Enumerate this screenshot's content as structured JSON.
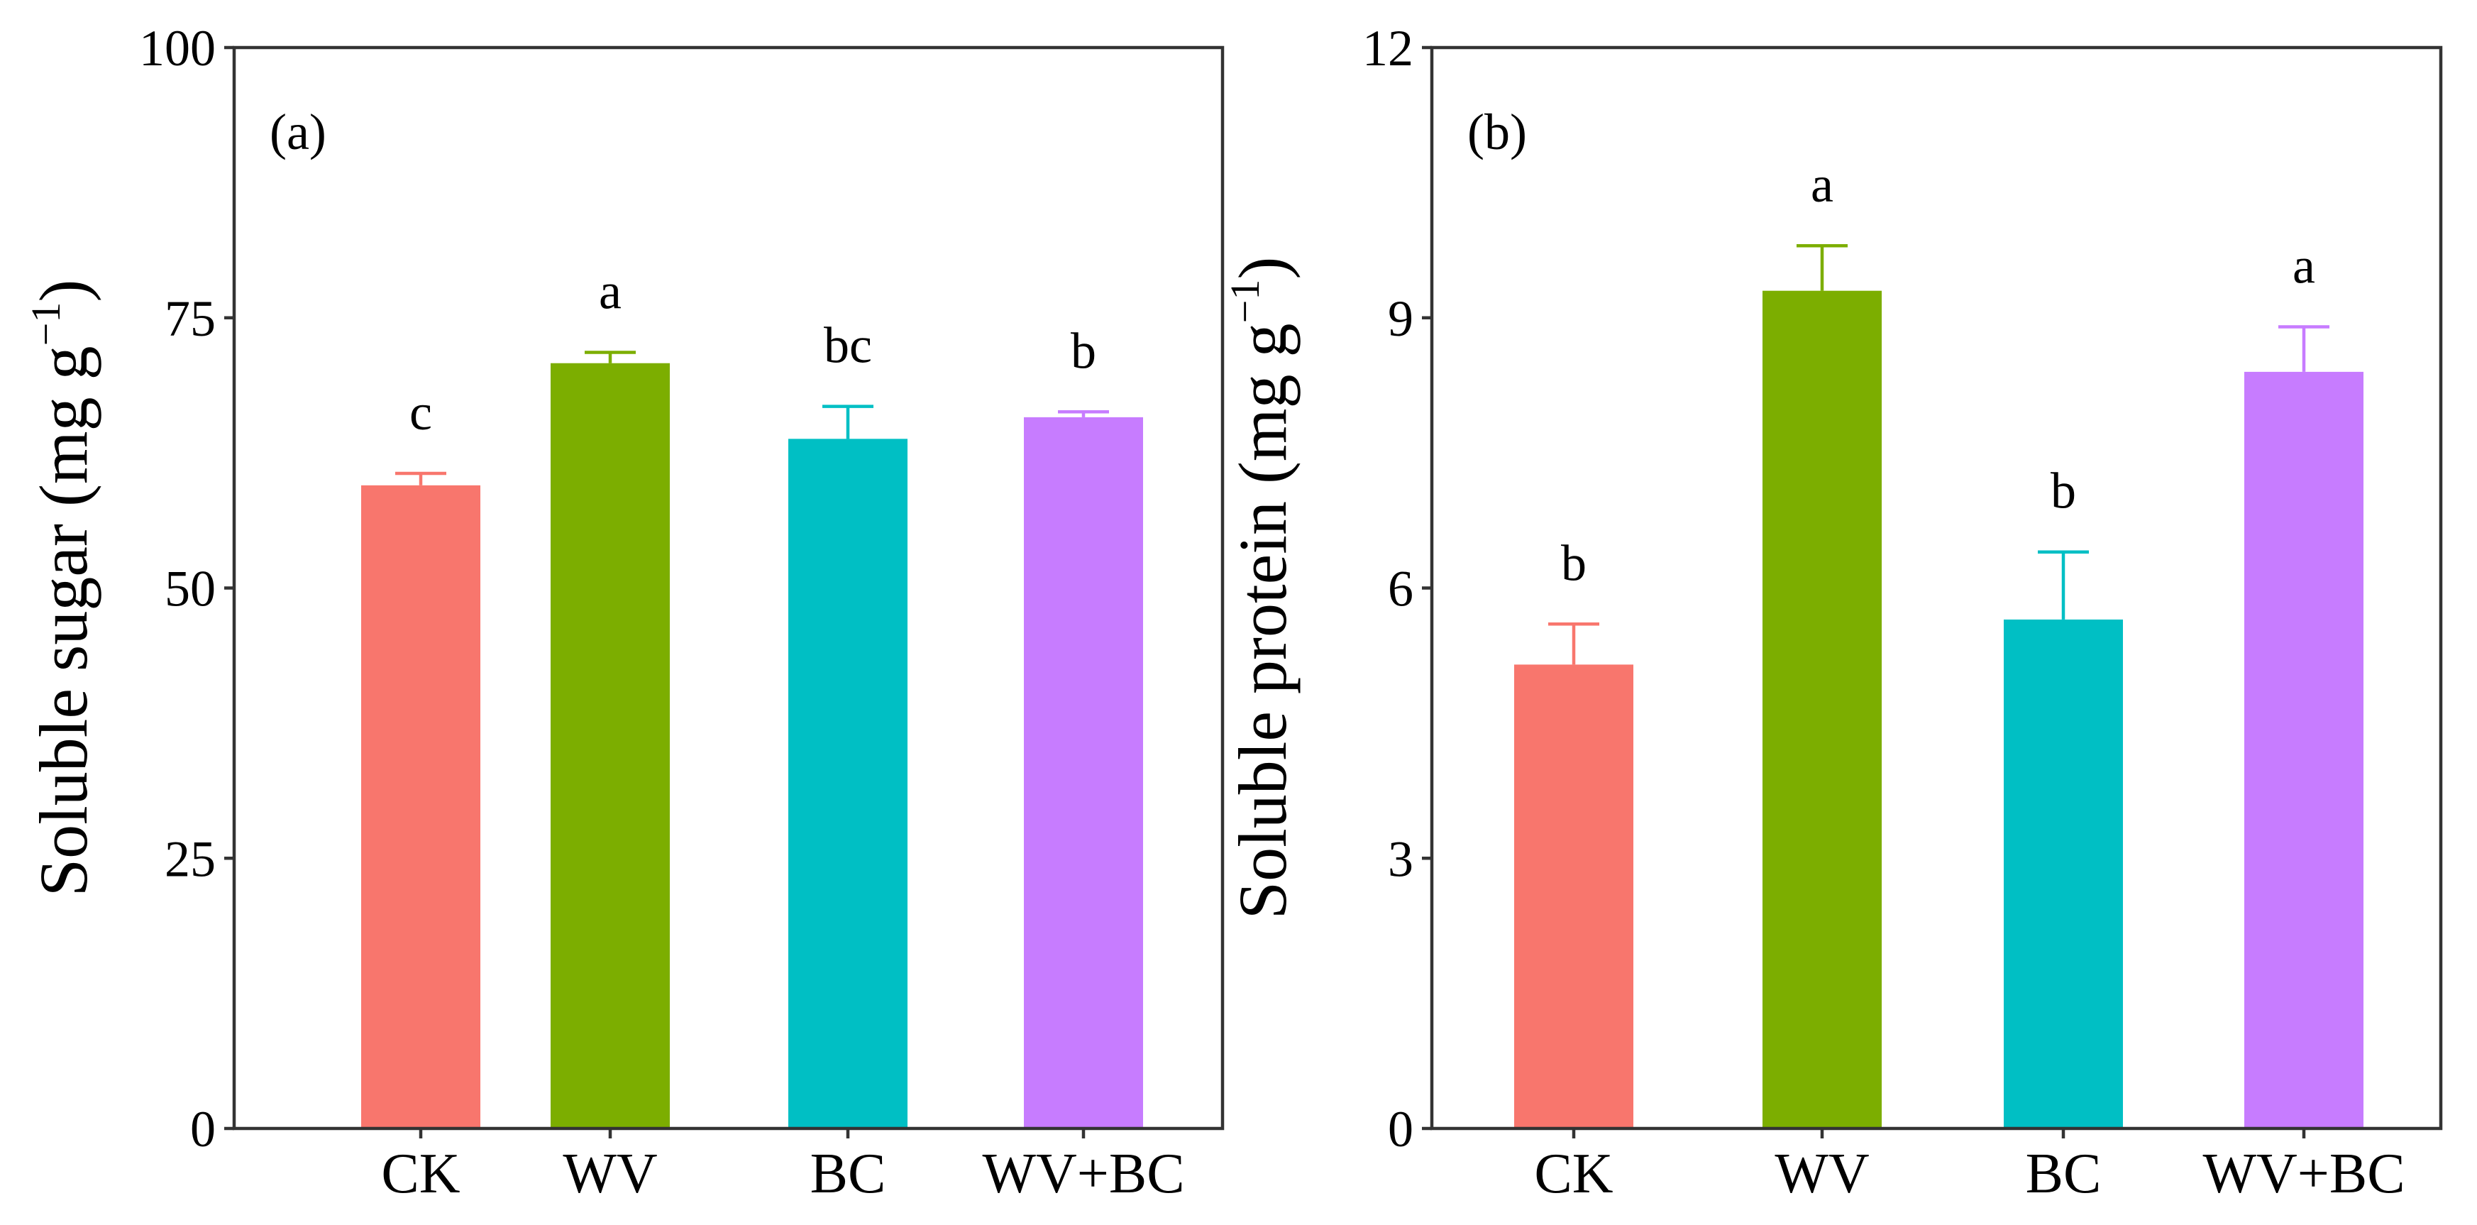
{
  "chart_data": [
    {
      "type": "bar",
      "panel_label": "(a)",
      "ylabel_main": "Soluble sugar (mg g",
      "ylabel_sup": "−1",
      "ylabel_close": ")",
      "xlabel": "",
      "ylim": [
        0,
        100
      ],
      "yticks": [
        0,
        25,
        50,
        75,
        100
      ],
      "categories": [
        "CK",
        "WV",
        "BC",
        "WV+BC"
      ],
      "values": [
        59.5,
        70.8,
        63.8,
        65.8
      ],
      "errors": [
        1.1,
        1.0,
        3.0,
        0.5
      ],
      "significance": [
        "c",
        "a",
        "bc",
        "b"
      ],
      "colors": [
        "#F8766D",
        "#7CAE00",
        "#00BFC4",
        "#C77CFF"
      ]
    },
    {
      "type": "bar",
      "panel_label": "(b)",
      "ylabel_main": "Soluble protein (mg g",
      "ylabel_sup": "−1",
      "ylabel_close": ")",
      "xlabel": "",
      "ylim": [
        0,
        12
      ],
      "yticks": [
        0,
        3,
        6,
        9,
        12
      ],
      "categories": [
        "CK",
        "WV",
        "BC",
        "WV+BC"
      ],
      "values": [
        5.15,
        9.3,
        5.65,
        8.4
      ],
      "errors": [
        0.45,
        0.5,
        0.75,
        0.5
      ],
      "significance": [
        "b",
        "a",
        "b",
        "a"
      ],
      "colors": [
        "#F8766D",
        "#7CAE00",
        "#00BFC4",
        "#C77CFF"
      ]
    }
  ]
}
